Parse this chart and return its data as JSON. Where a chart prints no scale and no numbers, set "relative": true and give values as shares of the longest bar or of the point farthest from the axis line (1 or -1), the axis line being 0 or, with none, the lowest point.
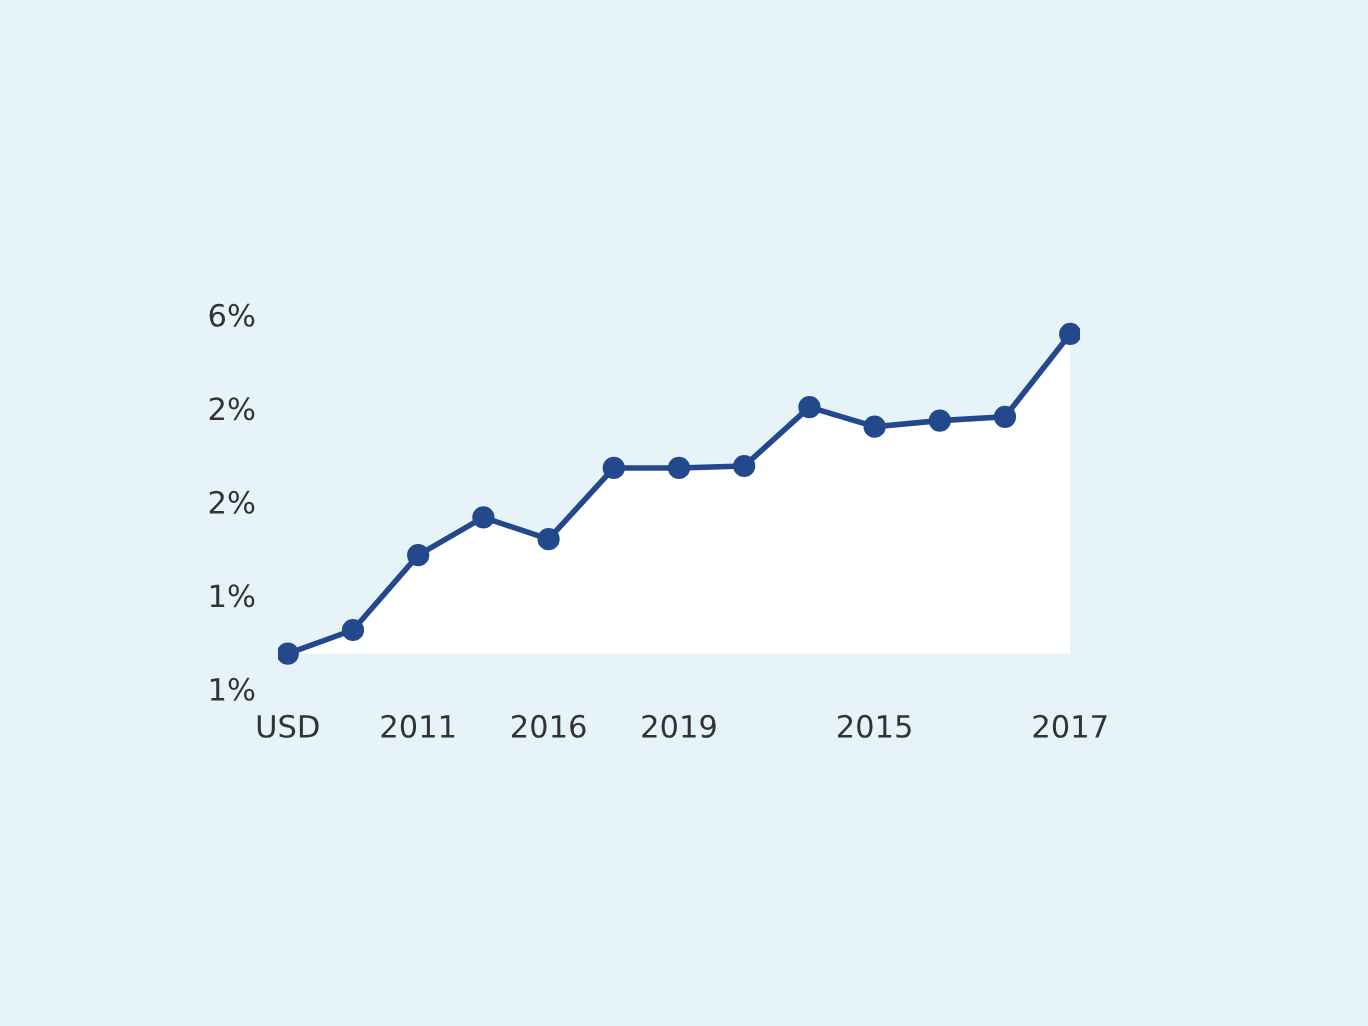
{
  "chart_data": {
    "type": "area",
    "relative": true,
    "categories": [
      "USD",
      null,
      "2011",
      null,
      "2016",
      null,
      "2019",
      null,
      null,
      "2015",
      null,
      null,
      "2017"
    ],
    "series": [
      {
        "color": "#24488c",
        "values": [
          0,
          0.074,
          0.308,
          0.426,
          0.358,
          0.581,
          0.581,
          0.587,
          0.771,
          0.71,
          0.729,
          0.741,
          1
        ]
      }
    ],
    "annotations": [
      "6%",
      "2%",
      "2%",
      "1%",
      "1%"
    ],
    "marker": "circle",
    "line_style": "solid",
    "grid": false,
    "legend": false
  }
}
